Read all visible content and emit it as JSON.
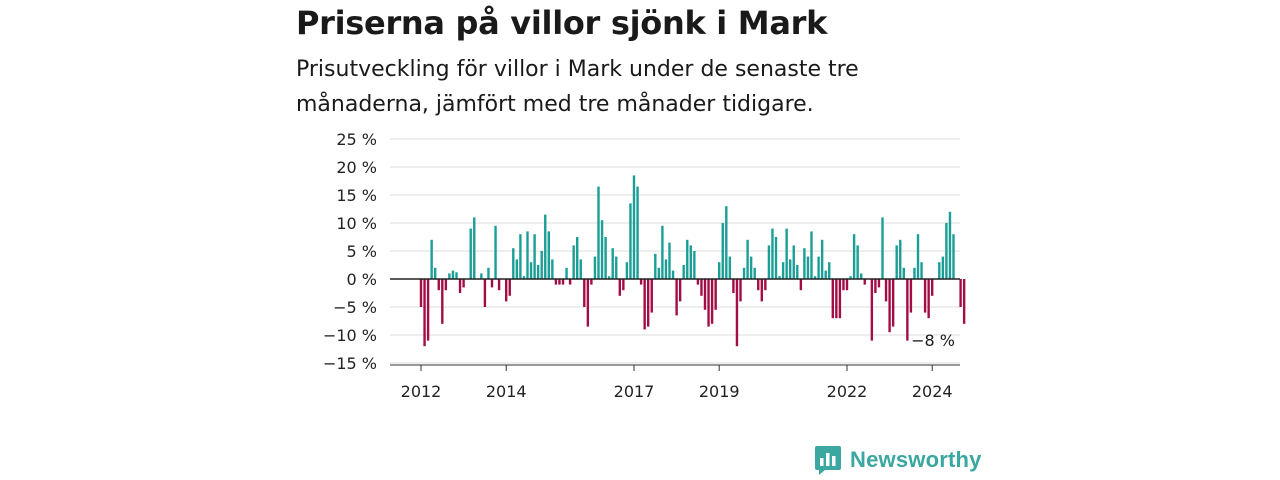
{
  "title": "Priserna på villor sjönk i Mark",
  "subtitle": "Prisutveckling för villor i Mark under de senaste tre månaderna, jämfört med tre månader tidigare.",
  "brand": {
    "name": "Newsworthy",
    "color": "#3aa7a0"
  },
  "chart_data": {
    "type": "bar",
    "title": "",
    "xlabel": "",
    "ylabel": "",
    "ylim": [
      -15,
      25
    ],
    "yticks": [
      25,
      20,
      15,
      10,
      5,
      0,
      -5,
      -10,
      -15
    ],
    "ytick_labels": [
      "25 %",
      "20 %",
      "15 %",
      "10 %",
      "5 %",
      "0 %",
      "−5 %",
      "−10 %",
      "−15 %"
    ],
    "xtick_labels": [
      {
        "label": "2012",
        "index": 0
      },
      {
        "label": "2014",
        "index": 24
      },
      {
        "label": "2017",
        "index": 60
      },
      {
        "label": "2019",
        "index": 84
      },
      {
        "label": "2022",
        "index": 120
      },
      {
        "label": "2024",
        "index": 144
      }
    ],
    "positive_color": "#1a9e96",
    "negative_color": "#a30d45",
    "grid": true,
    "last_value_label": "−8 %",
    "values": [
      -5,
      -12,
      -11,
      7,
      2,
      -2,
      -8,
      -2,
      1,
      1.5,
      1.2,
      -2.5,
      -1.5,
      0,
      9,
      11,
      0,
      1,
      -5,
      2,
      -1.5,
      9.5,
      -2,
      0,
      -4,
      -3,
      5.5,
      3.5,
      8,
      0.5,
      8.5,
      3,
      8,
      2.5,
      5,
      11.5,
      8.5,
      3.5,
      -1,
      -1,
      -1,
      2,
      -1,
      6,
      7.5,
      3.5,
      -5,
      -8.5,
      -1,
      4,
      16.5,
      10.5,
      7.5,
      0.5,
      5.5,
      4,
      -3,
      -2,
      3,
      13.5,
      18.5,
      16.5,
      -1,
      -9,
      -8.5,
      -6,
      4.5,
      2,
      9.5,
      3.5,
      6.5,
      1.5,
      -6.5,
      -4,
      2.5,
      7,
      6,
      5,
      -1,
      -3,
      -5.5,
      -8.5,
      -8,
      -5.5,
      3,
      10,
      13,
      4,
      -2.5,
      -12,
      -4,
      2,
      7,
      4,
      2,
      -2,
      -4,
      -2,
      6,
      9,
      7.5,
      0.5,
      3,
      9,
      3.5,
      6,
      2.5,
      -2,
      5.5,
      4,
      8.5,
      0.5,
      4,
      7,
      1.5,
      3,
      -7,
      -7,
      -7,
      -2,
      -2,
      0.5,
      8,
      6,
      1,
      -1,
      0,
      -11,
      -2.5,
      -1.5,
      11,
      -4,
      -9.5,
      -8.5,
      6,
      7,
      2,
      -11,
      -6,
      2,
      8,
      3,
      -6,
      -7,
      -3,
      0,
      3,
      4,
      10,
      12,
      8,
      0,
      -5,
      -8
    ]
  }
}
